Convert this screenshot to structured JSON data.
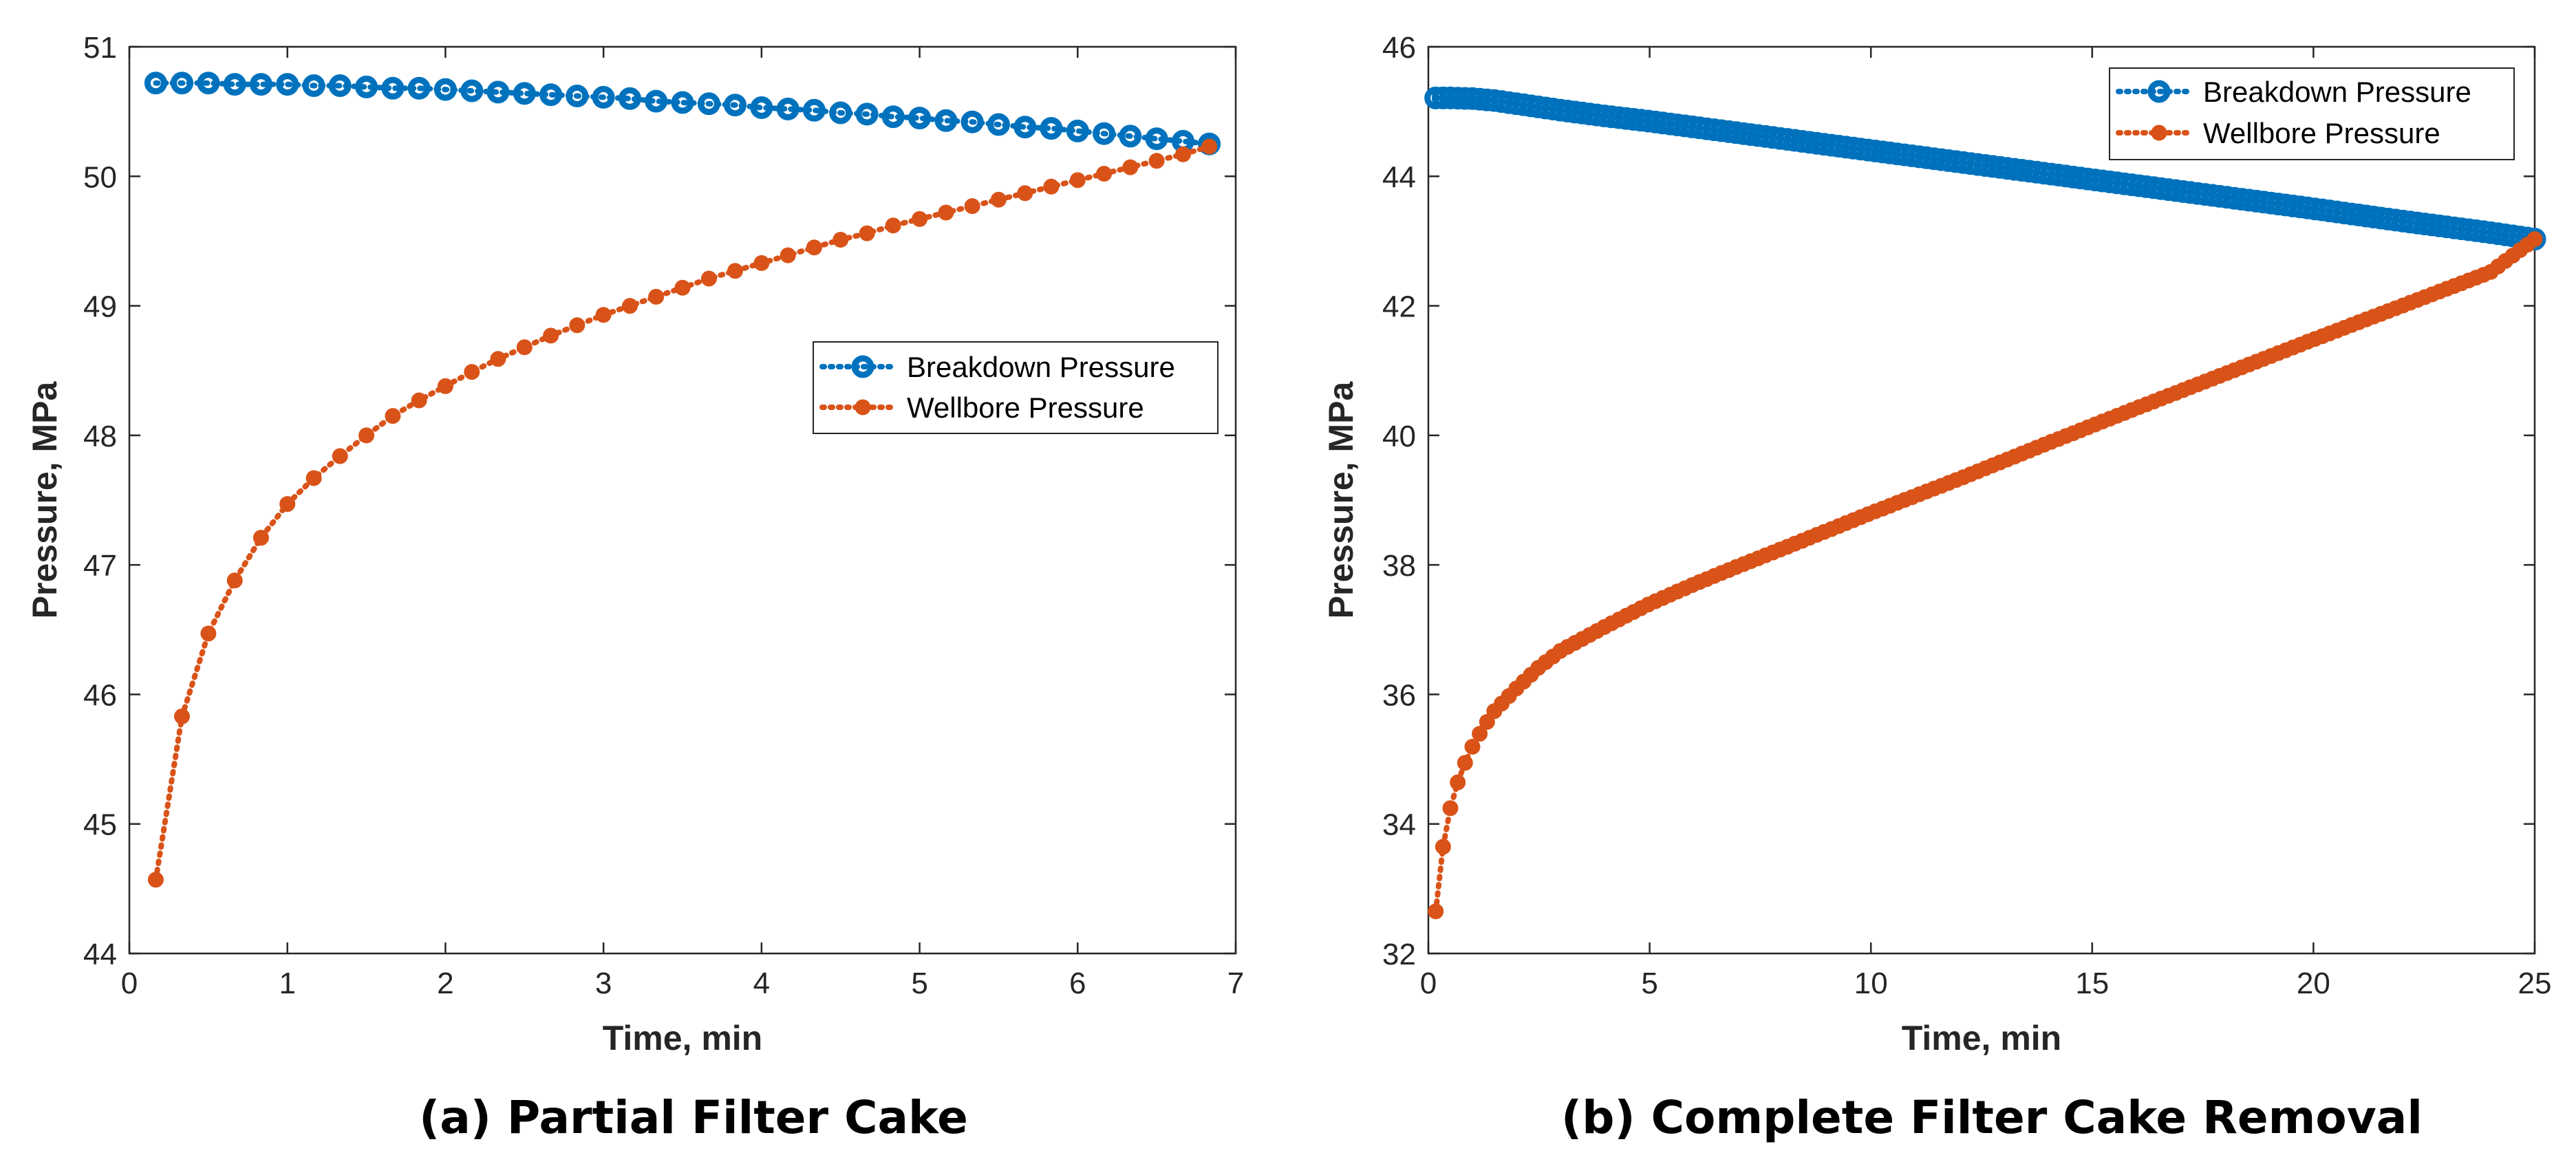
{
  "colors": {
    "breakdown": "#0072BD",
    "wellbore": "#D95319",
    "axis": "#262626"
  },
  "chart_data": [
    {
      "type": "line",
      "title": "",
      "caption": "(a) Partial Filter Cake",
      "xlabel": "Time, min",
      "ylabel": "Pressure, MPa",
      "xlim": [
        0,
        7
      ],
      "ylim": [
        44,
        51
      ],
      "xticks": [
        0,
        1,
        2,
        3,
        4,
        5,
        6,
        7
      ],
      "yticks": [
        44,
        45,
        46,
        47,
        48,
        49,
        50,
        51
      ],
      "grid": false,
      "legend_position": "center-right",
      "series": [
        {
          "name": "Breakdown Pressure",
          "marker": "circle-open",
          "line": "dotted",
          "x": [
            0.167,
            0.333,
            0.5,
            0.667,
            0.833,
            1.0,
            1.167,
            1.333,
            1.5,
            1.667,
            1.833,
            2.0,
            2.167,
            2.333,
            2.5,
            2.667,
            2.833,
            3.0,
            3.167,
            3.333,
            3.5,
            3.667,
            3.833,
            4.0,
            4.167,
            4.333,
            4.5,
            4.667,
            4.833,
            5.0,
            5.167,
            5.333,
            5.5,
            5.667,
            5.833,
            6.0,
            6.167,
            6.333,
            6.5,
            6.667,
            6.833
          ],
          "y": [
            50.72,
            50.72,
            50.72,
            50.71,
            50.71,
            50.71,
            50.7,
            50.7,
            50.69,
            50.68,
            50.68,
            50.67,
            50.66,
            50.65,
            50.64,
            50.63,
            50.62,
            50.61,
            50.6,
            50.58,
            50.57,
            50.56,
            50.55,
            50.53,
            50.52,
            50.51,
            50.49,
            50.48,
            50.46,
            50.45,
            50.43,
            50.42,
            50.4,
            50.38,
            50.37,
            50.35,
            50.33,
            50.31,
            50.29,
            50.27,
            50.25
          ]
        },
        {
          "name": "Wellbore Pressure",
          "marker": "circle-filled",
          "line": "dotted",
          "x": [
            0.167,
            0.333,
            0.5,
            0.667,
            0.833,
            1.0,
            1.167,
            1.333,
            1.5,
            1.667,
            1.833,
            2.0,
            2.167,
            2.333,
            2.5,
            2.667,
            2.833,
            3.0,
            3.167,
            3.333,
            3.5,
            3.667,
            3.833,
            4.0,
            4.167,
            4.333,
            4.5,
            4.667,
            4.833,
            5.0,
            5.167,
            5.333,
            5.5,
            5.667,
            5.833,
            6.0,
            6.167,
            6.333,
            6.5,
            6.667,
            6.833
          ],
          "y": [
            44.57,
            45.83,
            46.47,
            46.88,
            47.21,
            47.47,
            47.67,
            47.84,
            48.0,
            48.15,
            48.27,
            48.38,
            48.49,
            48.59,
            48.68,
            48.77,
            48.85,
            48.93,
            49.0,
            49.07,
            49.14,
            49.21,
            49.27,
            49.33,
            49.39,
            49.45,
            49.51,
            49.56,
            49.62,
            49.67,
            49.72,
            49.77,
            49.82,
            49.87,
            49.92,
            49.97,
            50.02,
            50.07,
            50.12,
            50.17,
            50.23
          ]
        }
      ]
    },
    {
      "type": "line",
      "title": "",
      "caption": "(b) Complete Filter Cake Removal",
      "xlabel": "Time, min",
      "ylabel": "Pressure, MPa",
      "xlim": [
        0,
        25
      ],
      "ylim": [
        32,
        46
      ],
      "xticks": [
        0,
        5,
        10,
        15,
        20,
        25
      ],
      "yticks": [
        32,
        34,
        36,
        38,
        40,
        42,
        44,
        46
      ],
      "grid": false,
      "legend_position": "top-right",
      "series": [
        {
          "name": "Breakdown Pressure",
          "marker": "circle-open",
          "line": "dotted",
          "x": [
            0.167,
            0.5,
            1,
            1.5,
            2,
            3,
            4,
            5,
            6,
            8,
            10,
            12,
            14,
            16,
            18,
            20,
            22,
            24,
            25
          ],
          "y": [
            45.21,
            45.21,
            45.2,
            45.17,
            45.12,
            45.02,
            44.93,
            44.85,
            44.76,
            44.58,
            44.4,
            44.22,
            44.04,
            43.86,
            43.68,
            43.5,
            43.31,
            43.13,
            43.03
          ]
        },
        {
          "name": "Wellbore Pressure",
          "marker": "circle-filled",
          "line": "dotted",
          "x": [
            0.167,
            0.333,
            0.5,
            0.667,
            0.833,
            1.0,
            1.25,
            1.5,
            2,
            2.5,
            3,
            4,
            5,
            6,
            7,
            8,
            10,
            12,
            14,
            16,
            18,
            20,
            22,
            24,
            25
          ],
          "y": [
            32.65,
            33.65,
            34.25,
            34.65,
            34.95,
            35.2,
            35.5,
            35.75,
            36.1,
            36.42,
            36.68,
            37.05,
            37.4,
            37.7,
            37.98,
            38.25,
            38.8,
            39.33,
            39.88,
            40.42,
            40.95,
            41.48,
            42.0,
            42.52,
            43.03
          ]
        }
      ]
    }
  ]
}
